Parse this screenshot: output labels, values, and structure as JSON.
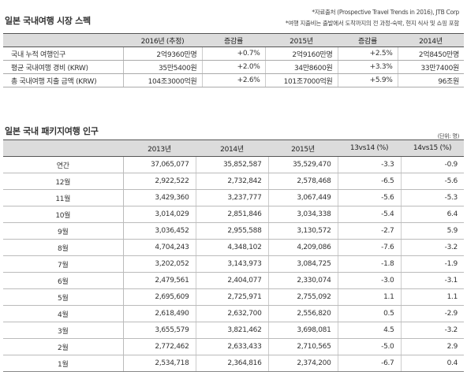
{
  "section1": {
    "title": "일본 국내여행 시장 스펙",
    "notes": [
      "*자료출처 (Prospective Travel Trends in 2016), JTB Corp",
      "*여행 지출비는 출발에서 도착까지의 전 과정-숙박, 현지 식사 및 쇼핑 포함"
    ],
    "columns": [
      "",
      "2016년 (추정)",
      "증감률",
      "2015년",
      "증감률",
      "2014년"
    ],
    "rows": [
      {
        "label": "국내 누적 여행인구",
        "values": [
          "2억9360만명",
          "+0.7%",
          "2억9160만명",
          "+2.5%",
          "2억8450만명"
        ]
      },
      {
        "label": "평균 국내여행 경비 (KRW)",
        "values": [
          "35만5400원",
          "+2.0%",
          "34만8600원",
          "+3.3%",
          "33만7400원"
        ]
      },
      {
        "label": "총 국내여행 지출 금액 (KRW)",
        "values": [
          "104조3000억원",
          "+2.6%",
          "101조7000억원",
          "+5.9%",
          "96조원"
        ]
      }
    ]
  },
  "section2": {
    "title": "일본 국내 패키지여행 인구",
    "unit": "(단위: 명)",
    "columns": [
      "",
      "2013년",
      "2014년",
      "2015년",
      "13vs14 (%)",
      "14vs15 (%)"
    ],
    "rows": [
      {
        "label": "연간",
        "values": [
          "37,065,077",
          "35,852,587",
          "35,529,470",
          "-3.3",
          "-0.9"
        ]
      },
      {
        "label": "12월",
        "values": [
          "2,922,522",
          "2,732,842",
          "2,578,468",
          "-6.5",
          "-5.6"
        ]
      },
      {
        "label": "11월",
        "values": [
          "3,429,360",
          "3,237,777",
          "3,067,449",
          "-5.6",
          "-5.3"
        ]
      },
      {
        "label": "10월",
        "values": [
          "3,014,029",
          "2,851,846",
          "3,034,338",
          "-5.4",
          "6.4"
        ]
      },
      {
        "label": "9월",
        "values": [
          "3,036,452",
          "2,955,588",
          "3,130,572",
          "-2.7",
          "5.9"
        ]
      },
      {
        "label": "8월",
        "values": [
          "4,704,243",
          "4,348,102",
          "4,209,086",
          "-7.6",
          "-3.2"
        ]
      },
      {
        "label": "7월",
        "values": [
          "3,202,052",
          "3,143,973",
          "3,084,725",
          "-1.8",
          "-1.9"
        ]
      },
      {
        "label": "6월",
        "values": [
          "2,479,561",
          "2,404,077",
          "2,330,074",
          "-3.0",
          "-3.1"
        ]
      },
      {
        "label": "5월",
        "values": [
          "2,695,609",
          "2,725,971",
          "2,755,092",
          "1.1",
          "1.1"
        ]
      },
      {
        "label": "4월",
        "values": [
          "2,618,490",
          "2,632,700",
          "2,556,820",
          "0.5",
          "-2.9"
        ]
      },
      {
        "label": "3월",
        "values": [
          "3,655,579",
          "3,821,462",
          "3,698,081",
          "4.5",
          "-3.2"
        ]
      },
      {
        "label": "2월",
        "values": [
          "2,772,462",
          "2,633,433",
          "2,710,565",
          "-5.0",
          "2.9"
        ]
      },
      {
        "label": "1월",
        "values": [
          "2,534,718",
          "2,364,816",
          "2,374,200",
          "-6.7",
          "0.4"
        ]
      }
    ]
  }
}
